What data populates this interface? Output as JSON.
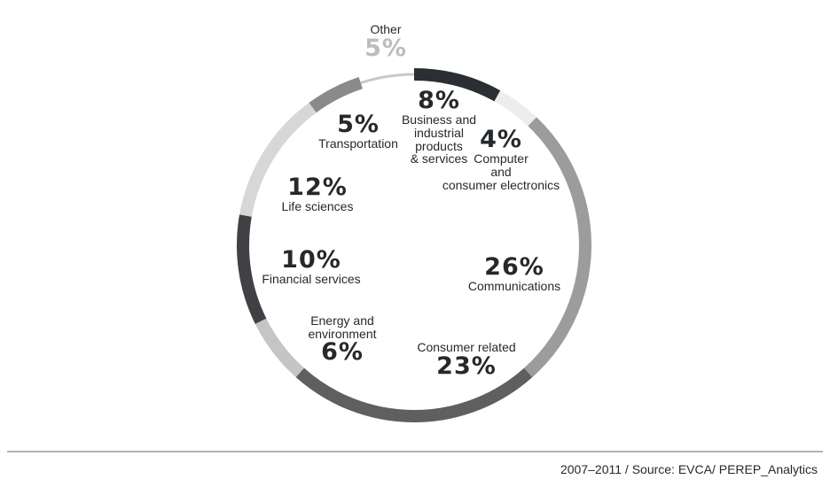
{
  "chart_data": {
    "type": "pie",
    "style": "ring",
    "slices": [
      {
        "label": "Business and industrial products & services",
        "value": 8,
        "pct_label": "8%",
        "text_lines": [
          "Business and",
          "industrial",
          "products",
          "& services"
        ],
        "color": "#2b2e32"
      },
      {
        "label": "Computer and consumer electronics",
        "value": 4,
        "pct_label": "4%",
        "text_lines": [
          "Computer",
          "and",
          "consumer electronics"
        ],
        "color": "#ededed"
      },
      {
        "label": "Communications",
        "value": 26,
        "pct_label": "26%",
        "text_lines": [
          "Communications"
        ],
        "color": "#9c9c9c"
      },
      {
        "label": "Consumer related",
        "value": 23,
        "pct_label": "23%",
        "text_lines": [
          "Consumer related"
        ],
        "color": "#5f5f5f"
      },
      {
        "label": "Energy and environment",
        "value": 6,
        "pct_label": "6%",
        "text_lines": [
          "Energy and",
          "environment"
        ],
        "color": "#c5c5c5"
      },
      {
        "label": "Financial services",
        "value": 10,
        "pct_label": "10%",
        "text_lines": [
          "Financial services"
        ],
        "color": "#404144"
      },
      {
        "label": "Life sciences",
        "value": 12,
        "pct_label": "12%",
        "text_lines": [
          "Life sciences"
        ],
        "color": "#d7d7d7"
      },
      {
        "label": "Transportation",
        "value": 5,
        "pct_label": "5%",
        "text_lines": [
          "Transportation"
        ],
        "color": "#8a8a8a"
      },
      {
        "label": "Other",
        "value": 5,
        "pct_label": "5%",
        "text_lines": [
          "Other"
        ],
        "color": "#c8c8c8"
      }
    ],
    "source_note": "2007–2011 / Source: EVCA/ PEREP_Analytics"
  }
}
